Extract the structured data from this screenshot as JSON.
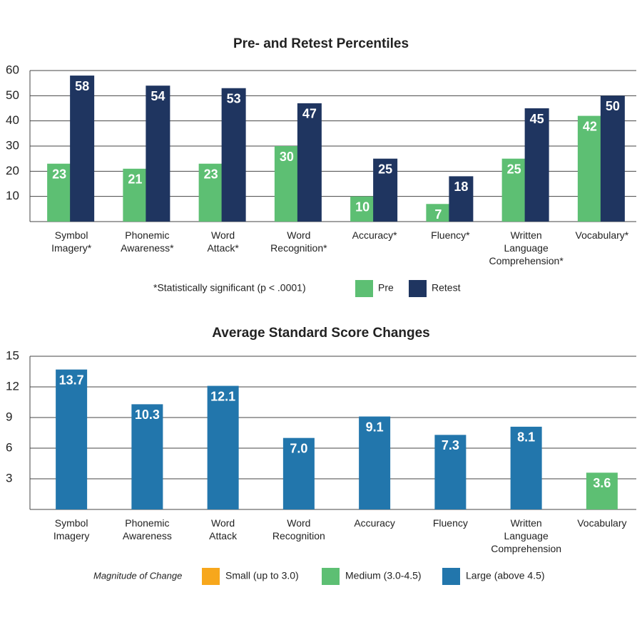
{
  "chart_data": [
    {
      "type": "bar",
      "title": "Pre- and Retest Percentiles",
      "categories": [
        "Symbol Imagery*",
        "Phonemic Awareness*",
        "Word Attack*",
        "Word Recognition*",
        "Accuracy*",
        "Fluency*",
        "Written Language Comprehension*",
        "Vocabulary*"
      ],
      "series": [
        {
          "name": "Pre",
          "color": "#5dbf73",
          "values": [
            23,
            21,
            23,
            30,
            10,
            7,
            25,
            42
          ]
        },
        {
          "name": "Retest",
          "color": "#1f3560",
          "values": [
            58,
            54,
            53,
            47,
            25,
            18,
            45,
            50
          ]
        }
      ],
      "ylim": [
        0,
        60
      ],
      "yticks": [
        10,
        20,
        30,
        40,
        50,
        60
      ],
      "grid": true,
      "note": "*Statistically significant (p < .0001)"
    },
    {
      "type": "bar",
      "title": "Average Standard Score Changes",
      "categories": [
        "Symbol Imagery",
        "Phonemic Awareness",
        "Word Attack",
        "Word Recognition",
        "Accuracy",
        "Fluency",
        "Written Language Comprehension",
        "Vocabulary"
      ],
      "values": [
        13.7,
        10.3,
        12.1,
        7.0,
        9.1,
        7.3,
        8.1,
        3.6
      ],
      "value_labels": [
        "13.7",
        "10.3",
        "12.1",
        "7.0",
        "9.1",
        "7.3",
        "8.1",
        "3.6"
      ],
      "colors": [
        "#2276ac",
        "#2276ac",
        "#2276ac",
        "#2276ac",
        "#2276ac",
        "#2276ac",
        "#2276ac",
        "#5dbf73"
      ],
      "ylim": [
        0,
        15
      ],
      "yticks": [
        3,
        6,
        9,
        12,
        15
      ],
      "grid": true,
      "legend": {
        "title": "Magnitude of Change",
        "items": [
          {
            "label": "Small (up to 3.0)",
            "color": "#f7a71c"
          },
          {
            "label": "Medium (3.0-4.5)",
            "color": "#5dbf73"
          },
          {
            "label": "Large (above 4.5)",
            "color": "#2276ac"
          }
        ]
      }
    }
  ]
}
